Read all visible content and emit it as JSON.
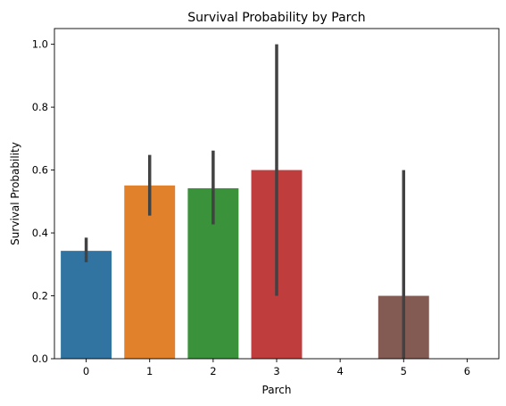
{
  "chart_data": {
    "type": "bar",
    "title": "Survival Probability by Parch",
    "xlabel": "Parch",
    "ylabel": "Survival Probability",
    "categories": [
      "0",
      "1",
      "2",
      "3",
      "4",
      "5",
      "6"
    ],
    "values": [
      0.343,
      0.551,
      0.542,
      0.6,
      0.0,
      0.2,
      0.0
    ],
    "error_low": [
      0.307,
      0.455,
      0.427,
      0.2,
      null,
      0.0,
      null
    ],
    "error_high": [
      0.385,
      0.648,
      0.662,
      1.0,
      null,
      0.6,
      null
    ],
    "ylim": [
      0,
      1.05
    ],
    "yticks": [
      "0.0",
      "0.2",
      "0.4",
      "0.6",
      "0.8",
      "1.0"
    ],
    "ytick_values": [
      0,
      0.2,
      0.4,
      0.6,
      0.8,
      1.0
    ],
    "colors": [
      "#3274a1",
      "#e1812c",
      "#3a923a",
      "#c03d3e",
      "#9372b2",
      "#845b53",
      "#d684bd"
    ],
    "error_color": "#424242",
    "grid": false,
    "legend": "none"
  }
}
